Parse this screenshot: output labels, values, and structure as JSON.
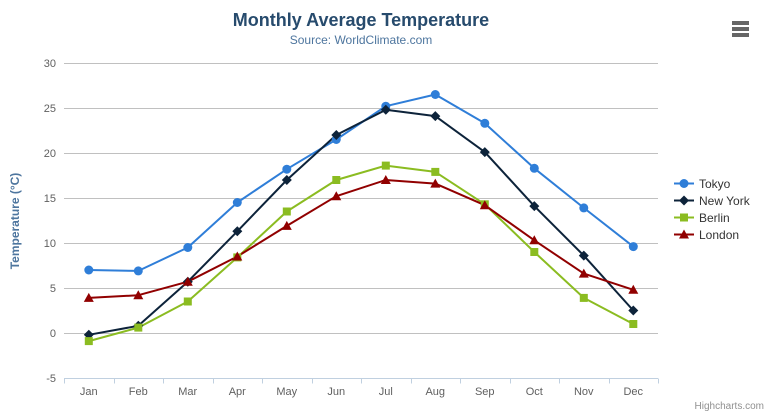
{
  "chart": {
    "title": "Monthly Average Temperature",
    "subtitle": "Source: WorldClimate.com",
    "credits": "Highcharts.com",
    "context_menu_icon": "hamburger-icon"
  },
  "chart_data": {
    "type": "line",
    "title": "Monthly Average Temperature",
    "subtitle": "Source: WorldClimate.com",
    "xlabel": "",
    "ylabel": "Temperature (°C)",
    "categories": [
      "Jan",
      "Feb",
      "Mar",
      "Apr",
      "May",
      "Jun",
      "Jul",
      "Aug",
      "Sep",
      "Oct",
      "Nov",
      "Dec"
    ],
    "ylim": [
      -5,
      30
    ],
    "ytick_step": 5,
    "grid": true,
    "legend_position": "right",
    "series": [
      {
        "name": "Tokyo",
        "color": "#2f7ed8",
        "marker": "circle",
        "values": [
          7.0,
          6.9,
          9.5,
          14.5,
          18.2,
          21.5,
          25.2,
          26.5,
          23.3,
          18.3,
          13.9,
          9.6
        ]
      },
      {
        "name": "New York",
        "color": "#0d233a",
        "marker": "diamond",
        "values": [
          -0.2,
          0.8,
          5.7,
          11.3,
          17.0,
          22.0,
          24.8,
          24.1,
          20.1,
          14.1,
          8.6,
          2.5
        ]
      },
      {
        "name": "Berlin",
        "color": "#8bbc21",
        "marker": "square",
        "values": [
          -0.9,
          0.6,
          3.5,
          8.4,
          13.5,
          17.0,
          18.6,
          17.9,
          14.3,
          9.0,
          3.9,
          1.0
        ]
      },
      {
        "name": "London",
        "color": "#910000",
        "marker": "triangle",
        "values": [
          3.9,
          4.2,
          5.7,
          8.5,
          11.9,
          15.2,
          17.0,
          16.6,
          14.2,
          10.3,
          6.6,
          4.8
        ]
      }
    ],
    "styles": {
      "grid_color": "#C0C0C0",
      "axis_line_color": "#C0D0E0",
      "tick_label_color": "#606060",
      "title_color": "#274b6d",
      "subtitle_color": "#4d759e"
    }
  }
}
